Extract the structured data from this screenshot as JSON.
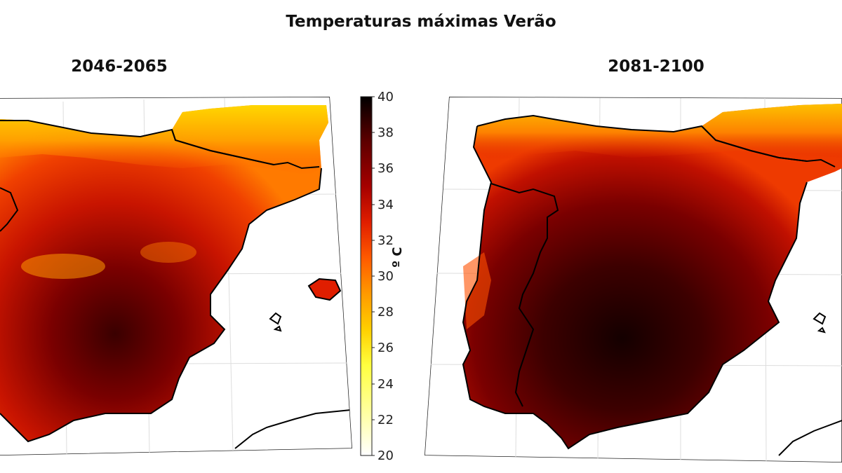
{
  "title": "Temperaturas máximas Verão",
  "panels": [
    {
      "label": "2046-2065"
    },
    {
      "label": "2081-2100"
    }
  ],
  "colorbar": {
    "unit": "º C",
    "ticks": [
      "40",
      "38",
      "36",
      "34",
      "32",
      "30",
      "28",
      "26",
      "24",
      "22",
      "20"
    ],
    "min": 20,
    "max": 40,
    "colors": [
      "#000000",
      "#5a0000",
      "#a50000",
      "#e01e00",
      "#ff5a00",
      "#ff9a00",
      "#ffd000",
      "#ffff40",
      "#ffffb0",
      "#ffffff"
    ]
  }
}
